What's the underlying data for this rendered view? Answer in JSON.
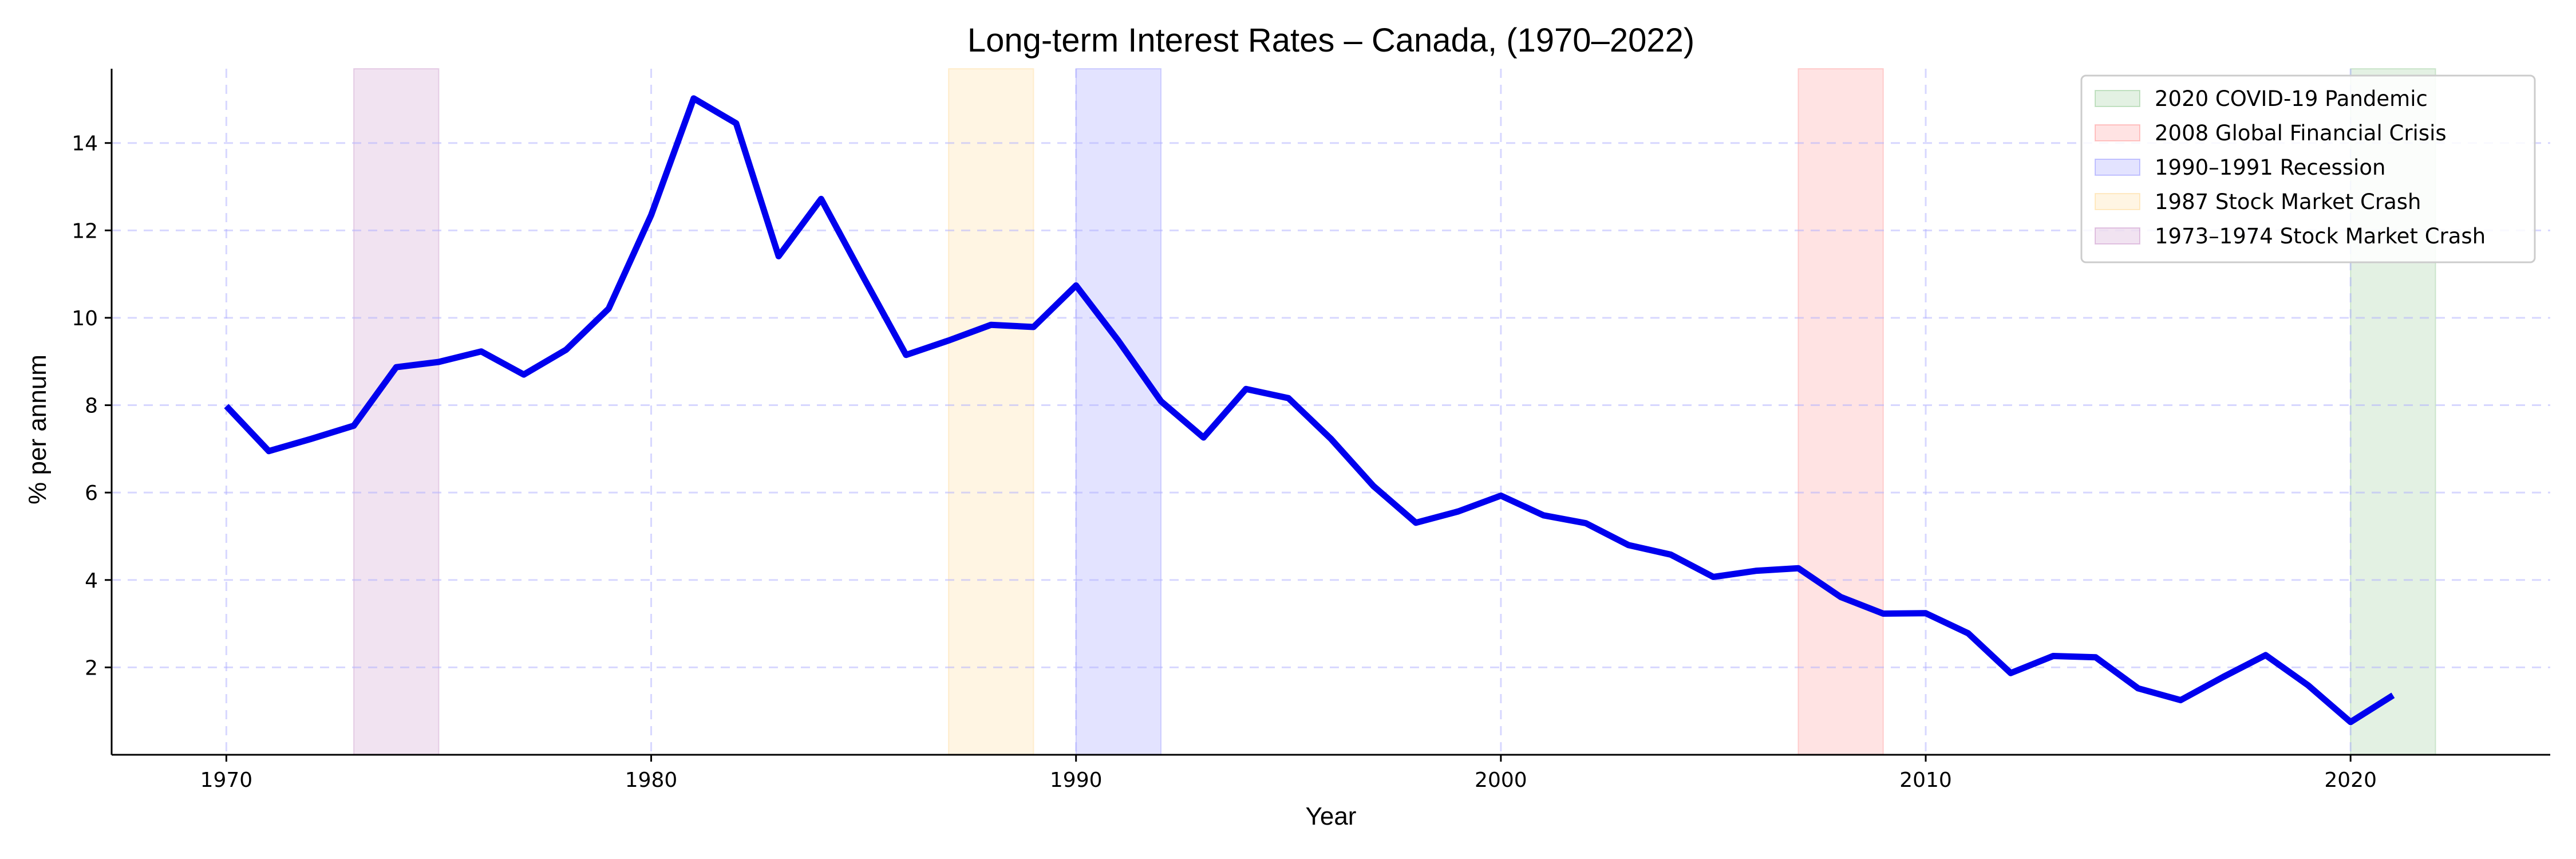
{
  "chart_data": {
    "type": "line",
    "title": "Long-term Interest Rates – Canada, (1970–2022)",
    "xlabel": "Year",
    "ylabel": "% per annum",
    "xlim": [
      1967.3,
      2024.7
    ],
    "ylim": [
      0,
      15.7
    ],
    "xticks": [
      1970,
      1980,
      1990,
      2000,
      2010,
      2020
    ],
    "yticks": [
      2,
      4,
      6,
      8,
      10,
      12,
      14
    ],
    "grid": true,
    "legend_position": "top-right",
    "series": [
      {
        "color": "#0000ee",
        "x": [
          1970,
          1971,
          1972,
          1973,
          1974,
          1975,
          1976,
          1977,
          1978,
          1979,
          1980,
          1981,
          1982,
          1983,
          1984,
          1985,
          1986,
          1987,
          1988,
          1989,
          1990,
          1991,
          1992,
          1993,
          1994,
          1995,
          1996,
          1997,
          1998,
          1999,
          2000,
          2001,
          2002,
          2003,
          2004,
          2005,
          2006,
          2007,
          2008,
          2009,
          2010,
          2011,
          2012,
          2013,
          2014,
          2015,
          2016,
          2017,
          2018,
          2019,
          2020,
          2021
        ],
        "y": [
          7.98,
          6.95,
          7.23,
          7.53,
          8.87,
          8.99,
          9.23,
          8.7,
          9.27,
          10.21,
          12.35,
          15.02,
          14.45,
          11.41,
          12.72,
          10.92,
          9.15,
          9.48,
          9.84,
          9.79,
          10.74,
          9.47,
          8.09,
          7.26,
          8.37,
          8.16,
          7.23,
          6.15,
          5.31,
          5.57,
          5.93,
          5.48,
          5.3,
          4.8,
          4.58,
          4.07,
          4.21,
          4.27,
          3.61,
          3.23,
          3.24,
          2.78,
          1.87,
          2.26,
          2.23,
          1.52,
          1.25,
          1.78,
          2.28,
          1.59,
          0.75,
          1.36
        ]
      }
    ],
    "bands": [
      {
        "name": "2020 COVID-19 Pandemic",
        "start": 2020,
        "end": 2022,
        "color": "#008000"
      },
      {
        "name": "2008 Global Financial Crisis",
        "start": 2007,
        "end": 2009,
        "color": "#ff0000"
      },
      {
        "name": "1990–1991 Recession",
        "start": 1990,
        "end": 1992,
        "color": "#0000ff"
      },
      {
        "name": "1987 Stock Market Crash",
        "start": 1987,
        "end": 1989,
        "color": "#ffa500"
      },
      {
        "name": "1973–1974 Stock Market Crash",
        "start": 1973,
        "end": 1975,
        "color": "#800080"
      }
    ]
  }
}
